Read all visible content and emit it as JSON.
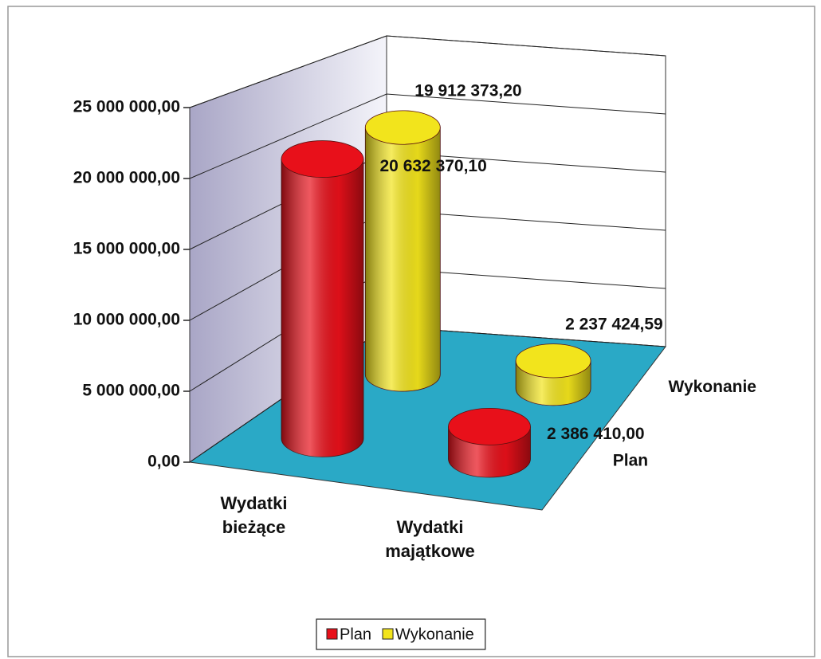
{
  "chart_data": {
    "type": "bar",
    "categories": [
      "Wydatki bieżące",
      "Wydatki majątkowe"
    ],
    "series": [
      {
        "name": "Plan",
        "color": "#e8101a",
        "values": [
          20632370.1,
          2386410
        ],
        "value_labels": [
          "20 632 370,10",
          "2 386 410,00"
        ]
      },
      {
        "name": "Wykonanie",
        "color": "#f2e41c",
        "values": [
          19912373.2,
          2237424.59
        ],
        "value_labels": [
          "19 912 373,20",
          "2 237 424,59"
        ]
      }
    ],
    "ylim": [
      0,
      25000000
    ],
    "yticks": [
      {
        "value": 0,
        "label": "0,00"
      },
      {
        "value": 5000000,
        "label": "5 000 000,00"
      },
      {
        "value": 10000000,
        "label": "10 000 000,00"
      },
      {
        "value": 15000000,
        "label": "15 000 000,00"
      },
      {
        "value": 20000000,
        "label": "20 000 000,00"
      },
      {
        "value": 25000000,
        "label": "25 000 000,00"
      }
    ],
    "grid": true,
    "legend": "bottom"
  }
}
